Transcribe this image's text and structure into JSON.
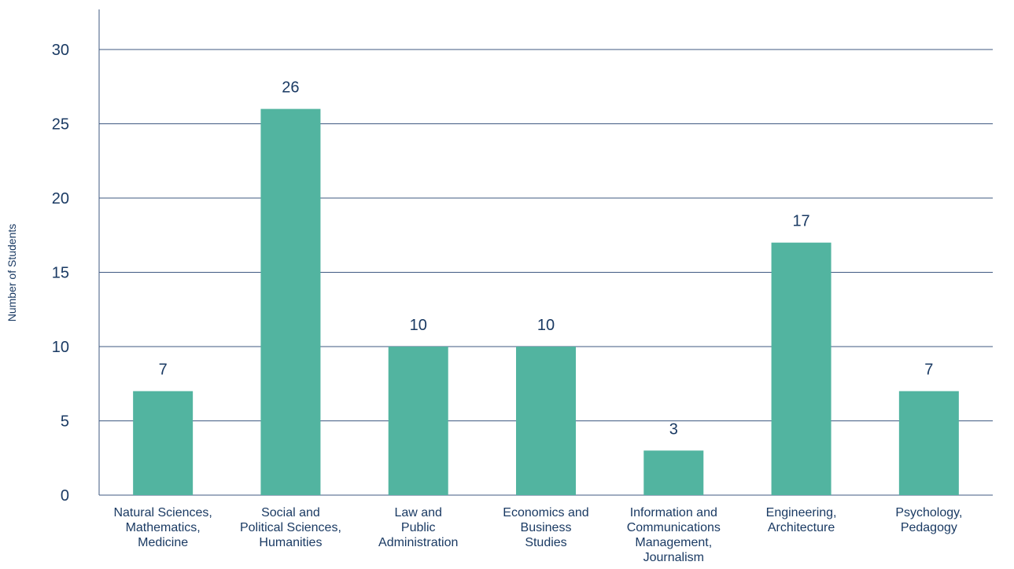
{
  "chart_data": {
    "type": "bar",
    "categories": [
      [
        "Natural Sciences,",
        "Mathematics,",
        "Medicine"
      ],
      [
        "Social and",
        "Political Sciences,",
        "Humanities"
      ],
      [
        "Law and",
        "Public",
        "Administration"
      ],
      [
        "Economics and",
        "Business",
        "Studies"
      ],
      [
        "Information and",
        "Communications",
        "Management,",
        "Journalism"
      ],
      [
        "Engineering,",
        "Architecture"
      ],
      [
        "Psychology,",
        "Pedagogy"
      ]
    ],
    "values": [
      7,
      26,
      10,
      10,
      3,
      17,
      7
    ],
    "data_labels": [
      "7",
      "26",
      "10",
      "10",
      "3",
      "17",
      "7"
    ],
    "title": "",
    "xlabel": "",
    "ylabel": "Number of Students",
    "ylim": [
      0,
      30
    ],
    "yticks": [
      0,
      5,
      10,
      15,
      20,
      25,
      30
    ],
    "ytick_labels": [
      "0",
      "5",
      "10",
      "15",
      "20",
      "25",
      "30"
    ],
    "grid": "horizontal",
    "legend": "none",
    "bar_color": "#52b4a0",
    "gridline_color": "#3f5a82",
    "text_color": "#1a3a63"
  }
}
